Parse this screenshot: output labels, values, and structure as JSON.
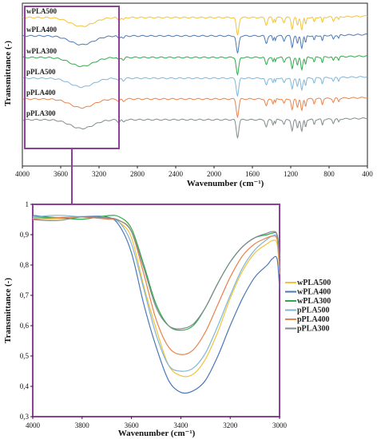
{
  "colors": {
    "wPLA500": "#f2c23a",
    "wPLA400": "#4a78b5",
    "wPLA300": "#2faa4a",
    "pPLA500": "#7fb6d6",
    "pPLA400": "#e9824a",
    "pPLA300": "#7f8a8c",
    "highlight": "#8e3f9a",
    "axis": "#222222"
  },
  "chart_data": [
    {
      "type": "line",
      "title": "",
      "xlabel": "Wavenumber (cm⁻¹)",
      "ylabel": "Transmittance (-)",
      "xlim": [
        4000,
        400
      ],
      "x_ticks": [
        "4000",
        "3600",
        "3200",
        "2800",
        "2400",
        "2000",
        "1600",
        "1200",
        "800",
        "400"
      ],
      "x_reversed": true,
      "stacked_offset": true,
      "series": [
        {
          "name": "wPLA500",
          "color_key": "wPLA500"
        },
        {
          "name": "wPLA400",
          "color_key": "wPLA400"
        },
        {
          "name": "wPLA300",
          "color_key": "wPLA300"
        },
        {
          "name": "pPLA500",
          "color_key": "pPLA500"
        },
        {
          "name": "pPLA400",
          "color_key": "pPLA400"
        },
        {
          "name": "pPLA300",
          "color_key": "pPLA300"
        }
      ],
      "highlight_region": [
        4000,
        3000
      ]
    },
    {
      "type": "line",
      "title": "",
      "xlabel": "Wavenumber (cm⁻¹)",
      "ylabel": "Transmittance (-)",
      "xlim": [
        4000,
        3000
      ],
      "ylim": [
        0.3,
        1.0
      ],
      "x_ticks": [
        "4000",
        "3800",
        "3600",
        "3400",
        "3200",
        "3000"
      ],
      "y_ticks": [
        "0,3",
        "0,4",
        "0,5",
        "0,6",
        "0,7",
        "0,8",
        "0,9",
        "1"
      ],
      "legend_position": "right",
      "series": [
        {
          "name": "wPLA500",
          "color_key": "wPLA500",
          "x": [
            4000,
            3900,
            3800,
            3700,
            3650,
            3600,
            3550,
            3500,
            3450,
            3400,
            3350,
            3300,
            3250,
            3200,
            3150,
            3100,
            3050,
            3030,
            3010,
            3000
          ],
          "y": [
            0.955,
            0.955,
            0.955,
            0.955,
            0.945,
            0.89,
            0.73,
            0.59,
            0.47,
            0.435,
            0.44,
            0.49,
            0.58,
            0.69,
            0.78,
            0.84,
            0.87,
            0.88,
            0.87,
            0.77
          ]
        },
        {
          "name": "wPLA400",
          "color_key": "wPLA400",
          "x": [
            4000,
            3900,
            3800,
            3700,
            3650,
            3600,
            3550,
            3500,
            3450,
            3400,
            3350,
            3300,
            3250,
            3200,
            3150,
            3100,
            3050,
            3030,
            3010,
            3000
          ],
          "y": [
            0.96,
            0.96,
            0.96,
            0.955,
            0.93,
            0.84,
            0.67,
            0.53,
            0.42,
            0.38,
            0.385,
            0.42,
            0.5,
            0.6,
            0.69,
            0.76,
            0.8,
            0.82,
            0.82,
            0.72
          ]
        },
        {
          "name": "wPLA300",
          "color_key": "wPLA300",
          "x": [
            4000,
            3900,
            3800,
            3700,
            3650,
            3600,
            3550,
            3500,
            3450,
            3400,
            3350,
            3300,
            3250,
            3200,
            3150,
            3100,
            3050,
            3030,
            3010,
            3000
          ],
          "y": [
            0.955,
            0.955,
            0.955,
            0.96,
            0.955,
            0.92,
            0.8,
            0.67,
            0.6,
            0.585,
            0.6,
            0.66,
            0.74,
            0.81,
            0.86,
            0.89,
            0.9,
            0.905,
            0.9,
            0.83
          ]
        },
        {
          "name": "pPLA500",
          "color_key": "pPLA500",
          "x": [
            4000,
            3900,
            3800,
            3700,
            3650,
            3600,
            3550,
            3500,
            3450,
            3400,
            3350,
            3300,
            3250,
            3200,
            3150,
            3100,
            3050,
            3030,
            3010,
            3000
          ],
          "y": [
            0.96,
            0.96,
            0.96,
            0.955,
            0.94,
            0.87,
            0.72,
            0.57,
            0.47,
            0.45,
            0.46,
            0.51,
            0.6,
            0.7,
            0.79,
            0.85,
            0.885,
            0.895,
            0.89,
            0.79
          ]
        },
        {
          "name": "pPLA400",
          "color_key": "pPLA400",
          "x": [
            4000,
            3900,
            3800,
            3700,
            3650,
            3600,
            3550,
            3500,
            3450,
            3400,
            3350,
            3300,
            3250,
            3200,
            3150,
            3100,
            3050,
            3030,
            3010,
            3000
          ],
          "y": [
            0.955,
            0.955,
            0.955,
            0.955,
            0.95,
            0.91,
            0.77,
            0.62,
            0.53,
            0.505,
            0.52,
            0.58,
            0.67,
            0.76,
            0.83,
            0.87,
            0.89,
            0.895,
            0.885,
            0.8
          ]
        },
        {
          "name": "pPLA300",
          "color_key": "pPLA300",
          "x": [
            4000,
            3900,
            3800,
            3700,
            3650,
            3600,
            3550,
            3500,
            3450,
            3400,
            3350,
            3300,
            3250,
            3200,
            3150,
            3100,
            3050,
            3030,
            3010,
            3000
          ],
          "y": [
            0.95,
            0.95,
            0.955,
            0.955,
            0.95,
            0.91,
            0.79,
            0.66,
            0.6,
            0.59,
            0.605,
            0.66,
            0.74,
            0.81,
            0.86,
            0.89,
            0.905,
            0.91,
            0.9,
            0.82
          ]
        }
      ]
    }
  ]
}
